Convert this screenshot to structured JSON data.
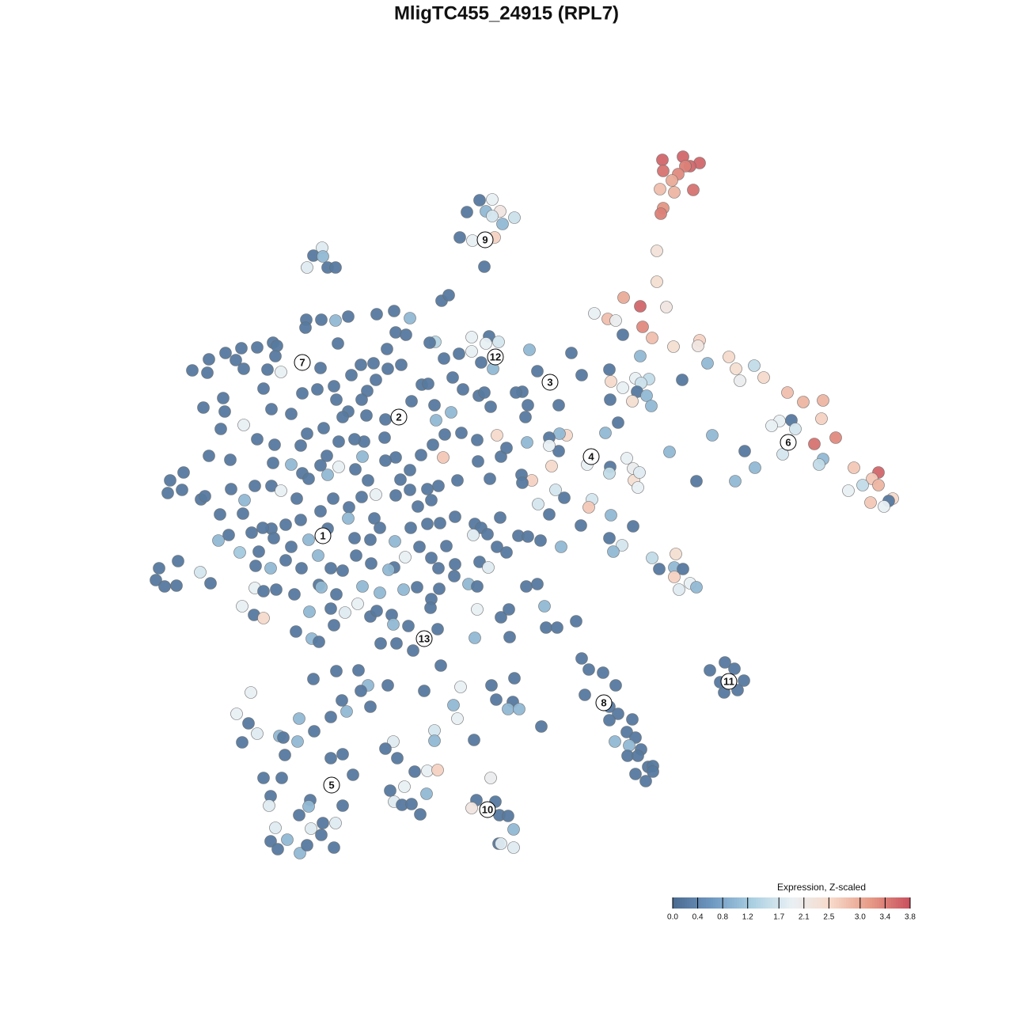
{
  "chart_data": {
    "type": "scatter",
    "title": "MligTC455_24915 (RPL7)",
    "xlim": [
      0,
      1280
    ],
    "ylim": [
      1280,
      0
    ],
    "x": [
      837,
      863,
      884,
      872,
      866,
      838,
      857,
      849,
      834,
      852,
      876,
      838,
      835,
      830,
      830,
      842,
      809,
      788,
      768,
      751,
      778,
      812,
      787,
      824,
      851,
      884,
      882,
      809,
      862,
      894,
      921,
      930,
      953,
      935,
      965,
      770,
      772,
      787,
      803,
      820,
      810,
      805,
      817,
      799,
      823,
      771,
      781,
      765,
      995,
      1015,
      1040,
      1038,
      985,
      975,
      1000,
      1005,
      989,
      1029,
      1056,
      941,
      900,
      846,
      1040,
      1035,
      954,
      929,
      880,
      1079,
      1110,
      1102,
      1090,
      1072,
      1110,
      1128,
      1123,
      1117,
      1100,
      742,
      771,
      792,
      800,
      770,
      801,
      806,
      808,
      748,
      744,
      713,
      702,
      680,
      694,
      734,
      772,
      800,
      770,
      786,
      775,
      709,
      716,
      707,
      694,
      706,
      694,
      666,
      697,
      672,
      659,
      660,
      722,
      735,
      706,
      679,
      669,
      664,
      660,
      652,
      667,
      824,
      854,
      852,
      863,
      833,
      852,
      858,
      872,
      880,
      897,
      916,
      928,
      940,
      932,
      915,
      910,
      735,
      744,
      762,
      778,
      739,
      770,
      781,
      799,
      770,
      792,
      803,
      777,
      795,
      810,
      793,
      806,
      819,
      825,
      803,
      816,
      825,
      606,
      622,
      614,
      590,
      632,
      622,
      650,
      635,
      581,
      597,
      625,
      612,
      407,
      396,
      408,
      388,
      414,
      424,
      558,
      567,
      387,
      406,
      424,
      440,
      476,
      498,
      518,
      386,
      500,
      513,
      550,
      543,
      596,
      618,
      614,
      630,
      580,
      596,
      623,
      608,
      561,
      264,
      243,
      262,
      285,
      298,
      308,
      305,
      325,
      345,
      350,
      348,
      338,
      355,
      333,
      282,
      257,
      284,
      308,
      279,
      325,
      347,
      264,
      291,
      232,
      215,
      212,
      230,
      254,
      259,
      292,
      309,
      278,
      307,
      322,
      343,
      355,
      375,
      368,
      382,
      345,
      380,
      388,
      409,
      425,
      401,
      382,
      368,
      343,
      405,
      422,
      427,
      444,
      456,
      472,
      489,
      490,
      507,
      475,
      464,
      457,
      440,
      433,
      463,
      487,
      520,
      533,
      541,
      549,
      551,
      570,
      562,
      583,
      603,
      620,
      605,
      612,
      585,
      572,
      547,
      532,
      518,
      500,
      486,
      460,
      458,
      448,
      428,
      413,
      405,
      428,
      414,
      390,
      449,
      465,
      475,
      487,
      506,
      518,
      540,
      554,
      578,
      604,
      619,
      633,
      640,
      628,
      560,
      545,
      528,
      500,
      473,
      457,
      441,
      421,
      405,
      380,
      361,
      343,
      332,
      318,
      289,
      276,
      303,
      327,
      346,
      368,
      390,
      414,
      440,
      448,
      468,
      480,
      499,
      519,
      540,
      556,
      575,
      600,
      608,
      616,
      598,
      628,
      640,
      632,
      655,
      667,
      683,
      564,
      545,
      530,
      512,
      498,
      491,
      469,
      450,
      433,
      418,
      402,
      381,
      361,
      342,
      323,
      253,
      266,
      225,
      201,
      197,
      208,
      223,
      322,
      333,
      349,
      372,
      403,
      406,
      425,
      452,
      458,
      480,
      510,
      527,
      555,
      554,
      575,
      574,
      592,
      603,
      606,
      617,
      665,
      679,
      306,
      321,
      333,
      545,
      544,
      603,
      633,
      643,
      688,
      690,
      704,
      728,
      391,
      418,
      436,
      468,
      476,
      495,
      497,
      516,
      553,
      600,
      644,
      374,
      394,
      403,
      422,
      481,
      501,
      522,
      557,
      396,
      425,
      453,
      465,
      456,
      490,
      536,
      582,
      621,
      650,
      627,
      648,
      642,
      656,
      684,
      317,
      299,
      314,
      325,
      306,
      353,
      358,
      376,
      378,
      397,
      432,
      418,
      438,
      468,
      360,
      418,
      433,
      333,
      356,
      446,
      342,
      340,
      392,
      390,
      378,
      433,
      348,
      393,
      408,
      424,
      406,
      363,
      342,
      351,
      379,
      388,
      422,
      497,
      487,
      502,
      549,
      549,
      573,
      578,
      599,
      540,
      553,
      524,
      511,
      493,
      539,
      498,
      508,
      520,
      531,
      620,
      602,
      626,
      596,
      631,
      642,
      649,
      630,
      633,
      649
    ],
    "y": [
      202,
      198,
      206,
      210,
      210,
      216,
      220,
      228,
      239,
      243,
      240,
      263,
      270,
      317,
      356,
      388,
      387,
      376,
      403,
      396,
      405,
      413,
      423,
      427,
      438,
      430,
      437,
      450,
      480,
      459,
      451,
      466,
      462,
      481,
      477,
      467,
      482,
      490,
      478,
      479,
      484,
      495,
      500,
      507,
      513,
      505,
      534,
      547,
      496,
      508,
      506,
      529,
      532,
      538,
      531,
      542,
      574,
      561,
      553,
      570,
      550,
      571,
      580,
      587,
      591,
      608,
      608,
      591,
      597,
      605,
      613,
      620,
      613,
      630,
      633,
      640,
      635,
      587,
      590,
      579,
      592,
      598,
      607,
      616,
      597,
      631,
      641,
      629,
      619,
      637,
      650,
      664,
      651,
      665,
      680,
      689,
      697,
      691,
      550,
      548,
      553,
      570,
      563,
      559,
      589,
      607,
      600,
      610,
      446,
      474,
      512,
      469,
      442,
      527,
      495,
      496,
      512,
      705,
      700,
      717,
      719,
      719,
      729,
      745,
      737,
      742,
      847,
      837,
      845,
      860,
      872,
      875,
      862,
      832,
      846,
      850,
      866,
      878,
      893,
      902,
      909,
      910,
      925,
      932,
      937,
      942,
      947,
      955,
      955,
      969,
      968,
      978,
      987,
      975,
      253,
      252,
      267,
      268,
      267,
      273,
      275,
      283,
      300,
      304,
      300,
      337,
      313,
      323,
      324,
      338,
      338,
      338,
      380,
      373,
      404,
      404,
      405,
      400,
      397,
      393,
      402,
      414,
      420,
      423,
      432,
      433,
      426,
      425,
      434,
      432,
      447,
      444,
      466,
      458,
      453,
      454,
      468,
      471,
      446,
      455,
      466,
      440,
      439,
      433,
      437,
      450,
      467,
      470,
      491,
      503,
      515,
      520,
      537,
      542,
      555,
      562,
      576,
      581,
      597,
      607,
      623,
      619,
      631,
      627,
      618,
      632,
      650,
      649,
      614,
      614,
      620,
      630,
      587,
      598,
      585,
      563,
      548,
      541,
      505,
      492,
      497,
      523,
      517,
      465,
      488,
      434,
      474,
      461,
      459,
      441,
      466,
      461,
      480,
      494,
      505,
      520,
      527,
      525,
      530,
      507,
      486,
      485,
      512,
      531,
      521,
      549,
      547,
      556,
      514,
      500,
      496,
      492,
      477,
      562,
      575,
      594,
      578,
      553,
      558,
      577,
      555,
      558,
      576,
      588,
      590,
      600,
      605,
      593,
      607,
      625,
      582,
      606,
      619,
      618,
      614,
      607,
      583,
      605,
      577,
      566,
      550,
      578,
      632,
      640,
      626,
      655,
      628,
      641,
      630,
      646,
      657,
      663,
      668,
      667,
      673,
      676,
      683,
      698,
      697,
      680,
      691,
      682,
      668,
      655,
      680,
      682,
      667,
      684,
      667,
      662,
      661,
      653,
      662,
      667,
      675,
      676,
      691,
      698,
      654,
      677,
      678,
      683,
      690,
      705,
      691,
      704,
      717,
      720,
      712,
      702,
      721,
      718,
      702,
      718,
      708,
      718,
      715,
      723,
      737,
      709,
      718,
      733,
      741,
      740,
      743,
      747,
      745,
      751,
      739,
      742,
      751,
      763,
      741,
      749,
      745,
      742,
      744,
      718,
      713,
      728,
      738,
      741,
      710,
      717,
      741,
      738,
      766,
      777,
      781,
      757,
      768,
      770,
      780,
      770,
      766,
      793,
      793,
      785,
      773,
      769,
      774,
      779,
      772,
      777,
      789,
      791,
      795,
      806,
      805,
      798,
      807,
      811,
      790,
      813,
      813,
      822,
      841,
      858,
      848,
      847,
      866,
      873,
      866,
      873,
      868,
      866,
      857,
      884,
      887,
      896,
      896,
      918,
      875,
      902,
      914,
      927,
      938,
      930,
      932,
      937,
      908,
      924,
      885,
      906,
      899,
      893,
      954,
      958,
      953,
      983,
      983,
      979,
      1006,
      1018,
      1011,
      1019,
      1030,
      1018,
      1046,
      1047,
      1040,
      1040,
      1055,
      1061,
      1063,
      1073,
      1078,
      1068,
      1071,
      937,
      946,
      958,
      923,
      936,
      891,
      908,
      935,
      974,
      973,
      975,
      994,
      999,
      1003,
      1013,
      1017,
      1016,
      1029,
      983,
      1011,
      1013,
      1021,
      1030,
      1031,
      1048,
      1066,
      1066,
      1071
    ],
    "values": [
      3.6,
      3.6,
      3.6,
      3.6,
      3.4,
      3.5,
      3.3,
      3.0,
      2.8,
      2.9,
      3.5,
      3.2,
      3.4,
      2.3,
      2.4,
      2.2,
      3.6,
      3.0,
      2.8,
      1.9,
      2.0,
      3.3,
      0.2,
      2.8,
      2.4,
      2.6,
      2.2,
      1.0,
      0.2,
      1.0,
      2.5,
      2.4,
      1.5,
      2.0,
      2.5,
      0.2,
      2.5,
      1.9,
      1.9,
      1.5,
      1.6,
      0.2,
      1.0,
      2.4,
      1.0,
      0.2,
      0.2,
      1.0,
      2.8,
      2.9,
      2.9,
      2.6,
      1.9,
      1.9,
      0.2,
      1.7,
      1.7,
      3.5,
      3.3,
      0.2,
      1.0,
      1.0,
      1.0,
      1.5,
      1.0,
      1.0,
      0.2,
      2.7,
      3.6,
      2.7,
      1.5,
      1.9,
      2.9,
      2.5,
      0.2,
      1.9,
      2.7,
      1.9,
      0.2,
      1.9,
      2.0,
      1.5,
      2.4,
      1.9,
      1.8,
      1.7,
      2.7,
      0.2,
      1.7,
      1.7,
      0.2,
      0.2,
      1.0,
      0.2,
      0.2,
      1.7,
      1.0,
      1.0,
      2.5,
      1.0,
      0.2,
      0.2,
      1.9,
      1.0,
      2.5,
      2.6,
      0.2,
      0.2,
      0.2,
      0.2,
      0.2,
      0.2,
      1.0,
      0.2,
      0.2,
      0.2,
      0.2,
      1.5,
      2.4,
      1.0,
      0.2,
      0.2,
      2.6,
      1.8,
      1.9,
      1.0,
      0.2,
      0.2,
      0.2,
      0.2,
      0.2,
      0.2,
      0.2,
      0.2,
      0.2,
      0.2,
      0.2,
      0.2,
      0.2,
      0.2,
      0.2,
      0.2,
      0.2,
      0.2,
      1.0,
      1.0,
      0.2,
      0.2,
      0.2,
      0.2,
      0.2,
      0.2,
      0.2,
      0.2,
      0.2,
      1.9,
      1.0,
      0.2,
      2.2,
      1.7,
      1.6,
      1.0,
      0.2,
      1.9,
      2.6,
      0.2,
      1.8,
      0.2,
      1.0,
      1.8,
      0.2,
      0.2,
      0.2,
      0.2,
      0.2,
      0.2,
      1.0,
      0.2,
      0.2,
      0.2,
      1.0,
      0.2,
      0.2,
      0.2,
      1.4,
      0.2,
      1.9,
      0.2,
      1.9,
      1.7,
      0.2,
      1.9,
      1.0,
      0.2,
      0.2,
      0.2,
      0.2,
      0.2,
      0.2,
      0.2,
      0.2,
      0.2,
      0.2,
      0.2,
      0.2,
      0.2,
      0.2,
      1.9,
      0.2,
      0.2,
      0.2,
      0.2,
      1.9,
      0.2,
      0.2,
      0.2,
      0.2,
      0.2,
      0.2,
      0.2,
      0.2,
      0.2,
      0.2,
      0.2,
      0.2,
      1.0,
      0.2,
      0.2,
      0.2,
      0.2,
      1.9,
      0.2,
      1.0,
      0.2,
      0.2,
      0.2,
      0.2,
      0.2,
      0.2,
      0.2,
      0.2,
      0.2,
      0.2,
      0.2,
      0.2,
      0.2,
      0.2,
      0.2,
      0.2,
      0.2,
      0.2,
      0.2,
      0.2,
      0.2,
      0.2,
      0.2,
      0.2,
      0.2,
      0.2,
      0.2,
      0.2,
      0.2,
      0.2,
      1.0,
      1.0,
      0.2,
      0.2,
      0.2,
      0.2,
      0.2,
      0.2,
      0.2,
      0.2,
      0.2,
      0.2,
      0.2,
      0.2,
      0.2,
      0.2,
      1.0,
      0.2,
      0.2,
      0.2,
      0.2,
      1.9,
      1.0,
      0.2,
      0.2,
      0.2,
      1.9,
      0.2,
      0.2,
      0.2,
      0.2,
      0.2,
      0.2,
      0.2,
      0.2,
      0.2,
      0.2,
      2.5,
      2.7,
      0.2,
      0.2,
      0.2,
      0.2,
      0.2,
      0.2,
      0.2,
      0.2,
      0.2,
      0.2,
      0.2,
      0.2,
      0.2,
      0.2,
      1.0,
      1.2,
      0.2,
      0.2,
      0.2,
      1.0,
      0.2,
      1.0,
      0.2,
      0.2,
      0.2,
      1.0,
      0.2,
      0.2,
      0.2,
      0.2,
      0.2,
      0.2,
      0.2,
      1.8,
      0.2,
      0.2,
      0.2,
      0.2,
      0.2,
      0.2,
      0.2,
      0.2,
      0.2,
      1.9,
      0.2,
      1.0,
      0.2,
      0.2,
      0.2,
      0.2,
      1.0,
      0.2,
      0.2,
      1.0,
      0.2,
      1.7,
      0.2,
      0.2,
      0.2,
      0.2,
      0.2,
      0.2,
      1.9,
      0.2,
      0.2,
      0.2,
      0.2,
      1.0,
      0.2,
      1.9,
      1.0,
      1.0,
      1.0,
      0.2,
      0.2,
      0.2,
      0.2,
      0.2,
      1.0,
      0.2,
      0.2,
      1.8,
      0.2,
      0.2,
      1.9,
      0.2,
      2.5,
      0.2,
      0.2,
      1.9,
      0.2,
      0.2,
      1.0,
      0.2,
      0.2,
      0.2,
      1.0,
      0.2,
      1.8,
      0.2,
      0.2,
      0.2,
      1.0,
      0.2,
      0.2,
      1.0,
      0.2,
      0.2,
      1.0,
      0.2,
      0.2,
      0.2,
      0.2,
      0.2,
      0.2,
      0.2,
      0.2,
      0.2,
      1.0,
      0.2,
      0.2,
      0.2,
      1.9,
      0.2,
      0.2,
      0.2,
      0.2,
      1.0,
      1.0,
      0.2,
      1.9,
      1.9,
      0.2,
      1.8,
      0.2,
      1.0,
      0.2,
      1.0,
      1.0,
      0.2,
      0.2,
      0.2,
      1.0,
      0.2,
      0.2,
      0.2,
      0.2,
      0.2,
      0.2,
      0.2,
      0.2,
      1.8,
      0.2,
      1.0,
      0.2,
      0.2,
      1.8,
      1.8,
      0.2,
      1.8,
      0.2,
      1.0,
      0.2,
      0.2,
      1.0,
      0.2,
      0.2,
      1.8,
      0.2,
      0.2,
      1.7,
      1.0,
      1.0,
      1.9,
      0.2,
      1.9,
      2.6,
      0.2,
      1.9,
      0.2,
      1.0,
      1.8,
      0.2,
      0.2,
      0.2,
      2.0,
      0.2,
      0.2,
      2.2,
      0.2,
      0.2,
      1.0,
      0.2,
      1.8,
      1.8
    ],
    "cluster_labels": {
      "labels": [
        "1",
        "2",
        "3",
        "4",
        "5",
        "6",
        "7",
        "8",
        "9",
        "10",
        "11",
        "12",
        "13"
      ],
      "x": [
        408,
        504,
        695,
        747,
        419,
        996,
        382,
        763,
        613,
        616,
        921,
        626,
        536
      ],
      "y": [
        677,
        527,
        483,
        577,
        992,
        559,
        458,
        888,
        303,
        1023,
        861,
        451,
        807
      ]
    },
    "colorbar": {
      "title": "Expression, Z-scaled",
      "lim": [
        0,
        3.8
      ],
      "ticks": [
        {
          "value": 0,
          "label": "0.0"
        },
        0.4,
        0.8,
        1.2,
        1.7,
        2.1,
        2.5,
        {
          "value": 3,
          "label": "3.0"
        },
        3.4,
        3.8
      ],
      "colors": [
        "#4a6a8f",
        "#6f98c2",
        "#a9cfe1",
        "#e9f0f4",
        "#f7d9c9",
        "#e69a86",
        "#c8505e"
      ]
    }
  }
}
